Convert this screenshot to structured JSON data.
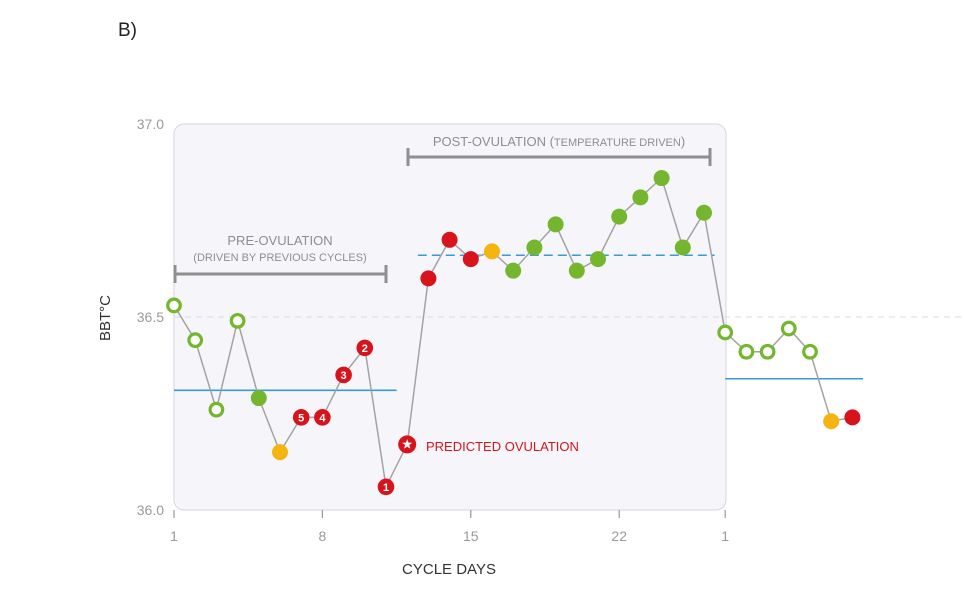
{
  "panel_label": "B)",
  "colors": {
    "green": "#74b72e",
    "orange": "#f6b410",
    "red": "#d7141c",
    "blue": "#3a9ad8",
    "line": "#a3a3a3",
    "bracket": "#8f8f8f"
  },
  "chart_data": {
    "type": "line",
    "xlabel": "CYCLE DAYS",
    "ylabel": "BBT°C",
    "ylim": [
      36.0,
      37.0
    ],
    "yticks": [
      "36.0",
      "36.5",
      "37.0"
    ],
    "xticks": [
      {
        "day": 1,
        "label": "1"
      },
      {
        "day": 8,
        "label": "8"
      },
      {
        "day": 15,
        "label": "15"
      },
      {
        "day": 22,
        "label": "22"
      },
      {
        "day": 27,
        "label": "1"
      }
    ],
    "points": [
      {
        "day": 1,
        "temp": 36.53,
        "type": "open"
      },
      {
        "day": 2,
        "temp": 36.44,
        "type": "open"
      },
      {
        "day": 3,
        "temp": 36.26,
        "type": "open"
      },
      {
        "day": 4,
        "temp": 36.49,
        "type": "open"
      },
      {
        "day": 5,
        "temp": 36.29,
        "type": "green"
      },
      {
        "day": 6,
        "temp": 36.15,
        "type": "orange"
      },
      {
        "day": 7,
        "temp": 36.24,
        "type": "red",
        "label": "5"
      },
      {
        "day": 8,
        "temp": 36.24,
        "type": "red",
        "label": "4"
      },
      {
        "day": 9,
        "temp": 36.35,
        "type": "red",
        "label": "3"
      },
      {
        "day": 10,
        "temp": 36.42,
        "type": "red",
        "label": "2"
      },
      {
        "day": 11,
        "temp": 36.06,
        "type": "red",
        "label": "1"
      },
      {
        "day": 12,
        "temp": 36.17,
        "type": "star"
      },
      {
        "day": 13,
        "temp": 36.6,
        "type": "red"
      },
      {
        "day": 14,
        "temp": 36.7,
        "type": "red"
      },
      {
        "day": 15,
        "temp": 36.65,
        "type": "red"
      },
      {
        "day": 16,
        "temp": 36.67,
        "type": "orange"
      },
      {
        "day": 17,
        "temp": 36.62,
        "type": "green"
      },
      {
        "day": 18,
        "temp": 36.68,
        "type": "green"
      },
      {
        "day": 19,
        "temp": 36.74,
        "type": "green"
      },
      {
        "day": 20,
        "temp": 36.62,
        "type": "green"
      },
      {
        "day": 21,
        "temp": 36.65,
        "type": "green"
      },
      {
        "day": 22,
        "temp": 36.76,
        "type": "green"
      },
      {
        "day": 23,
        "temp": 36.81,
        "type": "green"
      },
      {
        "day": 24,
        "temp": 36.86,
        "type": "green"
      },
      {
        "day": 25,
        "temp": 36.68,
        "type": "green"
      },
      {
        "day": 26,
        "temp": 36.77,
        "type": "green"
      },
      {
        "day": 27,
        "temp": 36.46,
        "type": "open"
      },
      {
        "day": 28,
        "temp": 36.41,
        "type": "open"
      },
      {
        "day": 29,
        "temp": 36.41,
        "type": "open"
      },
      {
        "day": 30,
        "temp": 36.47,
        "type": "open"
      },
      {
        "day": 31,
        "temp": 36.41,
        "type": "open"
      },
      {
        "day": 32,
        "temp": 36.23,
        "type": "orange"
      },
      {
        "day": 33,
        "temp": 36.24,
        "type": "red"
      }
    ],
    "reference_lines": [
      {
        "kind": "solid",
        "from_day": 1,
        "to_day": 11.5,
        "temp": 36.31
      },
      {
        "kind": "dashed",
        "from_day": 12.5,
        "to_day": 26.5,
        "temp": 36.66
      },
      {
        "kind": "solid",
        "from_day": 27,
        "to_day": 33.5,
        "temp": 36.34
      }
    ],
    "annotations": {
      "pre_title": "PRE-OVULATION",
      "pre_sub": "(DRIVEN BY PREVIOUS CYCLES)",
      "post_main": "POST-OVULATION (",
      "post_small": "TEMPERATURE DRIVEN",
      "post_close": ")",
      "predicted": "PREDICTED OVULATION"
    }
  }
}
